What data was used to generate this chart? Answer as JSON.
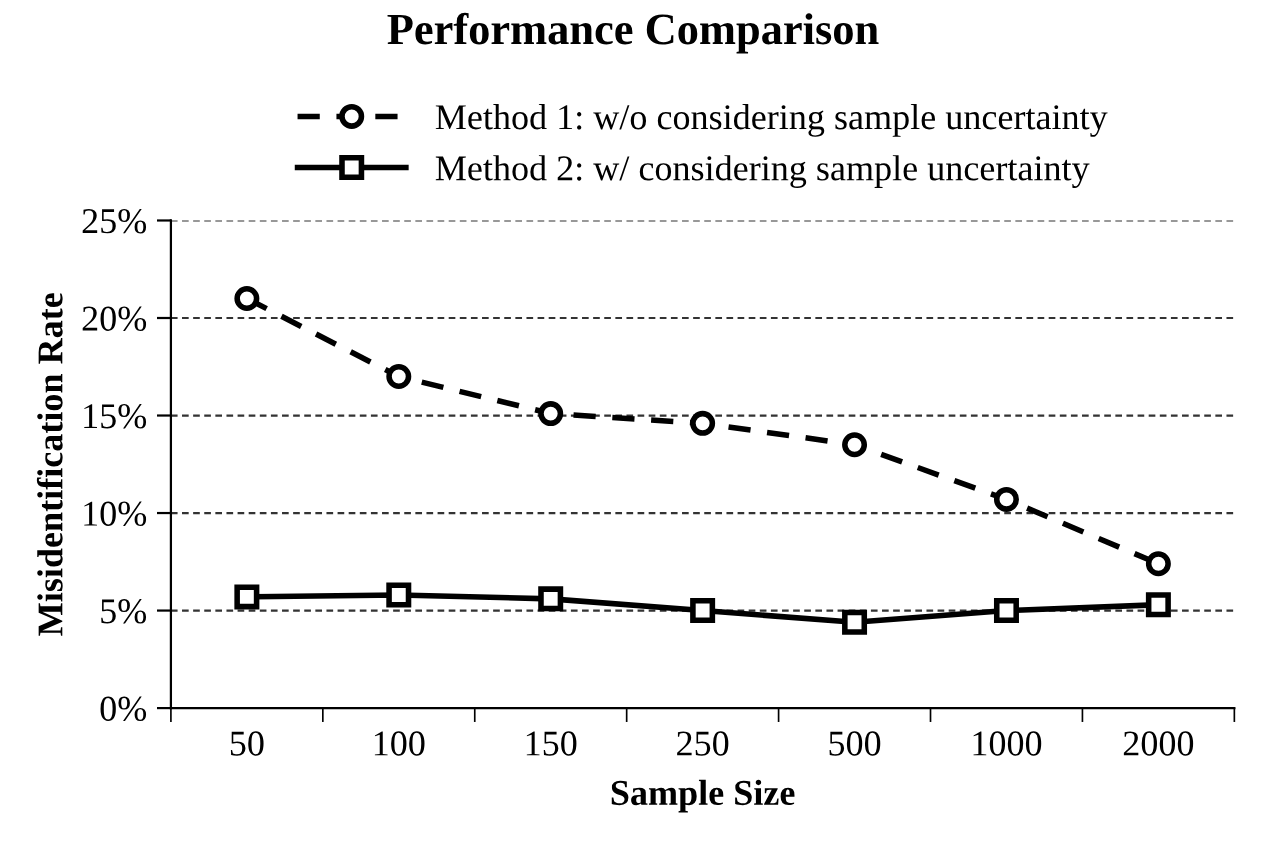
{
  "chart_data": {
    "type": "line",
    "title": "Performance Comparison",
    "xlabel": "Sample Size",
    "ylabel": "Misidentification Rate",
    "categories": [
      "50",
      "100",
      "150",
      "250",
      "500",
      "1000",
      "2000"
    ],
    "series": [
      {
        "name": "Method 1: w/o considering sample uncertainty",
        "color": "#000000",
        "line_style": "dashed",
        "marker": "circle",
        "values": [
          21.0,
          17.0,
          15.1,
          14.6,
          13.5,
          10.7,
          7.4
        ]
      },
      {
        "name": "Method 2: w/ considering sample uncertainty",
        "color": "#000000",
        "line_style": "solid",
        "marker": "square",
        "values": [
          5.7,
          5.8,
          5.6,
          5.0,
          4.4,
          5.0,
          5.3
        ]
      }
    ],
    "ylim": [
      0,
      25
    ],
    "yticks": [
      {
        "value": 0,
        "label": "0%"
      },
      {
        "value": 5,
        "label": "5%"
      },
      {
        "value": 10,
        "label": "10%"
      },
      {
        "value": 15,
        "label": "15%"
      },
      {
        "value": 20,
        "label": "20%"
      },
      {
        "value": 25,
        "label": "25%"
      }
    ],
    "grid": "y",
    "legend": "top"
  }
}
